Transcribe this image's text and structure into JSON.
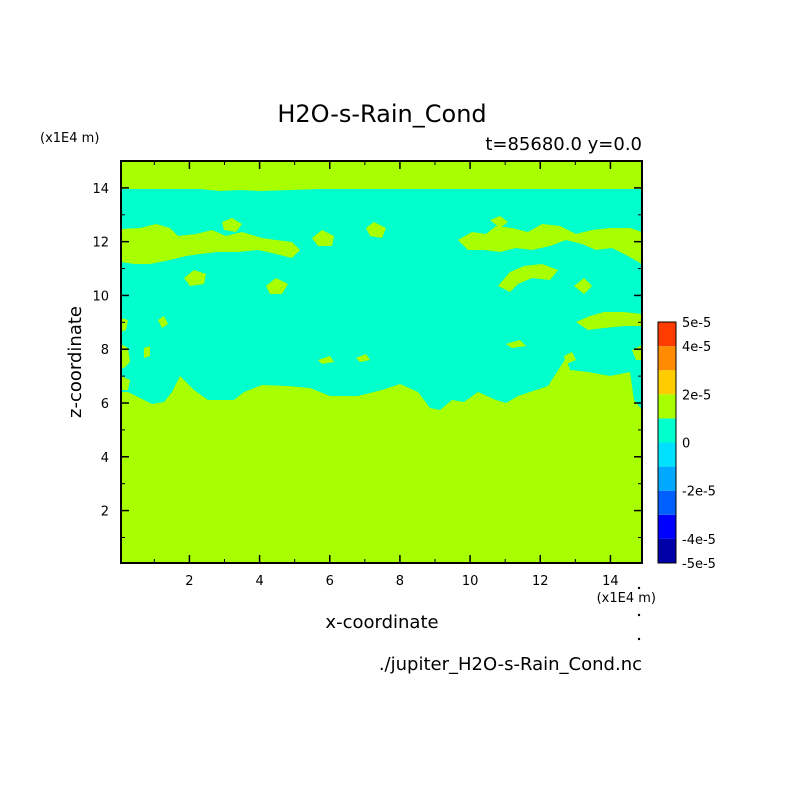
{
  "chart_data": {
    "type": "heatmap",
    "title": "H2O-s-Rain_Cond",
    "subtitle": "t=85680.0 y=0.0",
    "xlabel": "x-coordinate",
    "ylabel": "z-coordinate",
    "x_unit": "(x1E4 m)",
    "y_unit": "(x1E4 m)",
    "source_file": "./jupiter_H2O-s-Rain_Cond.nc",
    "xlim": [
      0.05,
      14.9
    ],
    "ylim": [
      0.05,
      15.0
    ],
    "xticks": [
      2,
      4,
      6,
      8,
      10,
      12,
      14
    ],
    "yticks": [
      2,
      4,
      6,
      8,
      10,
      12,
      14
    ],
    "colorbar": {
      "levels": [
        -5e-05,
        -4e-05,
        -3e-05,
        -2e-05,
        -1e-05,
        0,
        1e-05,
        2e-05,
        3e-05,
        4e-05,
        5e-05
      ],
      "colors": [
        "#0000a8",
        "#0000ff",
        "#0060ff",
        "#00a8ff",
        "#00e0ff",
        "#00ffcc",
        "#a8ff00",
        "#ffcc00",
        "#ff8c00",
        "#ff3c00",
        "#ff0000"
      ],
      "tick_labels": [
        "5e-5",
        "4e-5",
        "2e-5",
        "0",
        "-2e-5",
        "-4e-5",
        "-5e-5"
      ],
      "tick_values": [
        5e-05,
        4e-05,
        2e-05,
        0,
        -2e-05,
        -4e-05,
        -5e-05
      ]
    },
    "fields": {
      "zero_color": "#a8ff00",
      "negative_color": "#00ffcc",
      "description_values": "Lower region (z < ~6) and top layer (z > ~13.9) at 0; middle band (z ~6 to ~13.9) slightly negative (-1e-5 to 0) with patches at 0 near z 12 and z 8-9."
    }
  }
}
